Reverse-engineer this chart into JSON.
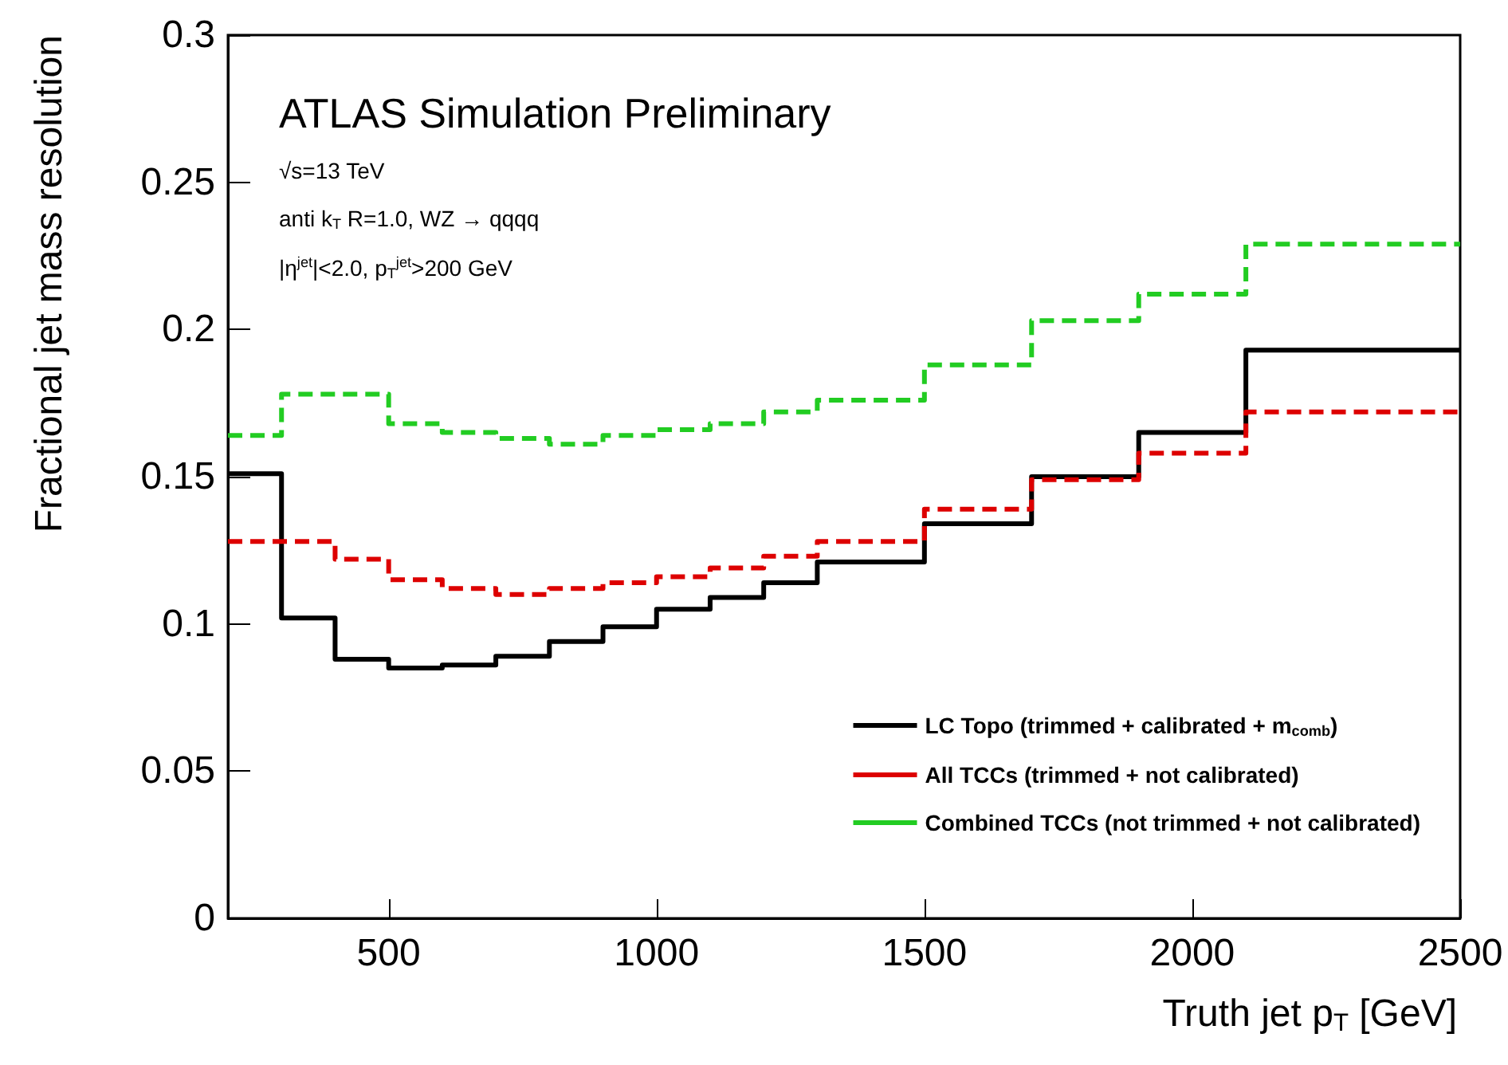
{
  "chart_data": {
    "type": "step",
    "xlabel": "Truth jet p$_{T}$ [GeV]",
    "ylabel": "Fractional jet mass resolution",
    "x": [
      200,
      300,
      400,
      500,
      600,
      700,
      800,
      900,
      1000,
      1100,
      1200,
      1300,
      1500,
      1700,
      1900,
      2100,
      2500
    ],
    "series": [
      {
        "name": "LC Topo (trimmed + calibrated + m$_{comb}$)",
        "color": "#000000",
        "line_style": "solid",
        "values": [
          0.151,
          0.102,
          0.088,
          0.085,
          0.086,
          0.089,
          0.094,
          0.099,
          0.105,
          0.109,
          0.114,
          0.121,
          0.134,
          0.15,
          0.165,
          0.193,
          0.193
        ]
      },
      {
        "name": "All TCCs (trimmed + not calibrated)",
        "color": "#dd0000",
        "line_style": "dashed",
        "values": [
          0.128,
          0.128,
          0.122,
          0.115,
          0.112,
          0.11,
          0.112,
          0.114,
          0.116,
          0.119,
          0.123,
          0.128,
          0.139,
          0.149,
          0.158,
          0.172,
          0.172
        ]
      },
      {
        "name": "Combined TCCs (not trimmed + not calibrated)",
        "color": "#22cc22",
        "line_style": "dashed",
        "values": [
          0.164,
          0.178,
          0.178,
          0.168,
          0.165,
          0.163,
          0.161,
          0.164,
          0.166,
          0.168,
          0.172,
          0.176,
          0.188,
          0.203,
          0.212,
          0.229,
          0.229
        ]
      }
    ],
    "xlim": [
      200,
      2500
    ],
    "xticks": [
      500,
      1000,
      1500,
      2000,
      2500
    ],
    "ylim": [
      0,
      0.3
    ],
    "yticks": [
      0,
      0.05,
      0.1,
      0.15,
      0.2,
      0.25,
      0.3
    ],
    "grid": false,
    "legend": "bottom right",
    "marker": "none",
    "annotations": [
      "ATLAS Simulation Preliminary",
      "√s=13 TeV",
      "anti k$_{T}$ R=1.0, WZ → qqqq",
      "|η$^{jet}$|<2.0, p$_{T}$$^{jet}$>200 GeV"
    ]
  }
}
